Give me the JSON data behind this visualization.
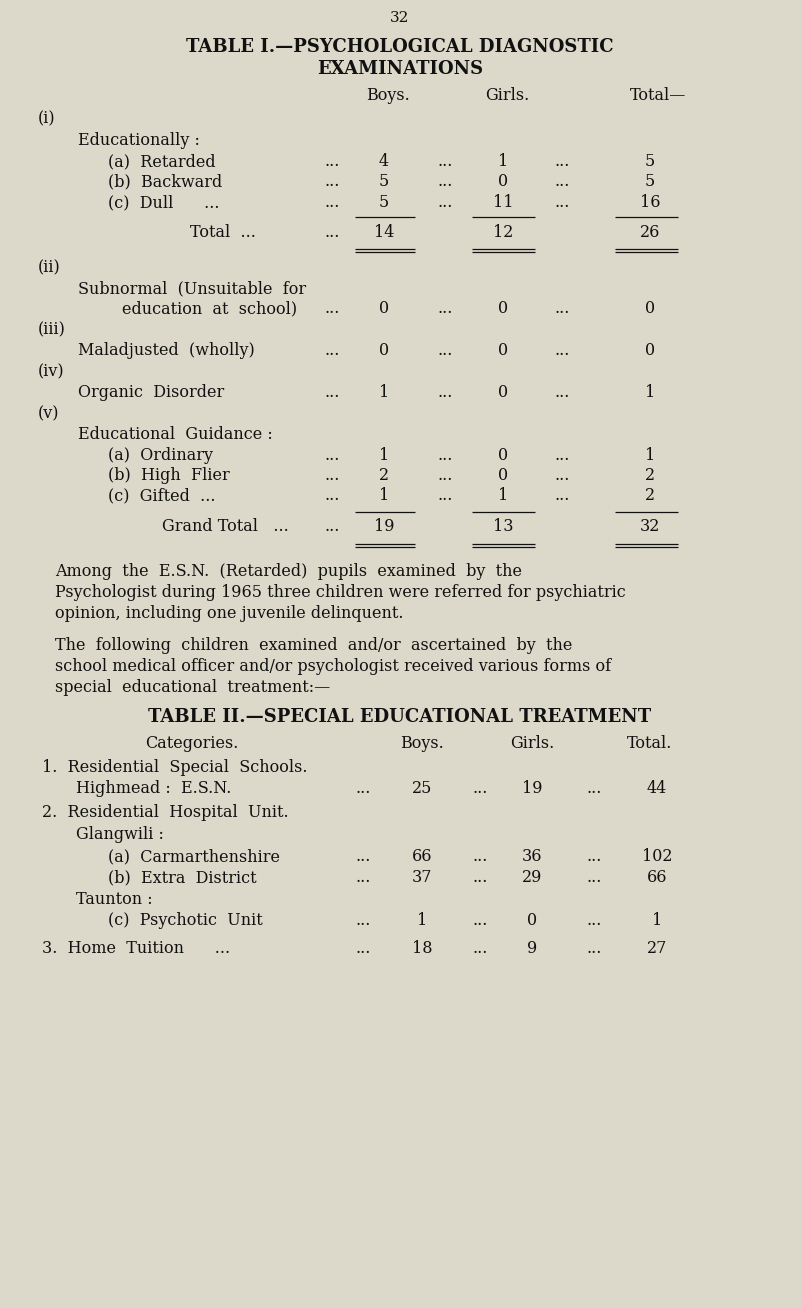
{
  "bg_color": "#ddd9ca",
  "text_color": "#111111",
  "page_number": "32",
  "t1_title1": "TABLE I.—PSYCHOLOGICAL DIAGNOSTIC",
  "t1_title2": "EXAMINATIONS",
  "t2_title": "TABLE II.—SPECIAL EDUCATIONAL TREATMENT",
  "para1_lines": [
    "Among  the  E.S.N.  (Retarded)  pupils  examined  by  the",
    "Psychologist during 1965 three children were referred for psychiatric",
    "opinion, including one juvenile delinquent."
  ],
  "para2_lines": [
    "The  following  children  examined  and/or  ascertained  by  the",
    "school medical officer and/or psychologist received various forms of",
    "special  educational  treatment:—"
  ]
}
